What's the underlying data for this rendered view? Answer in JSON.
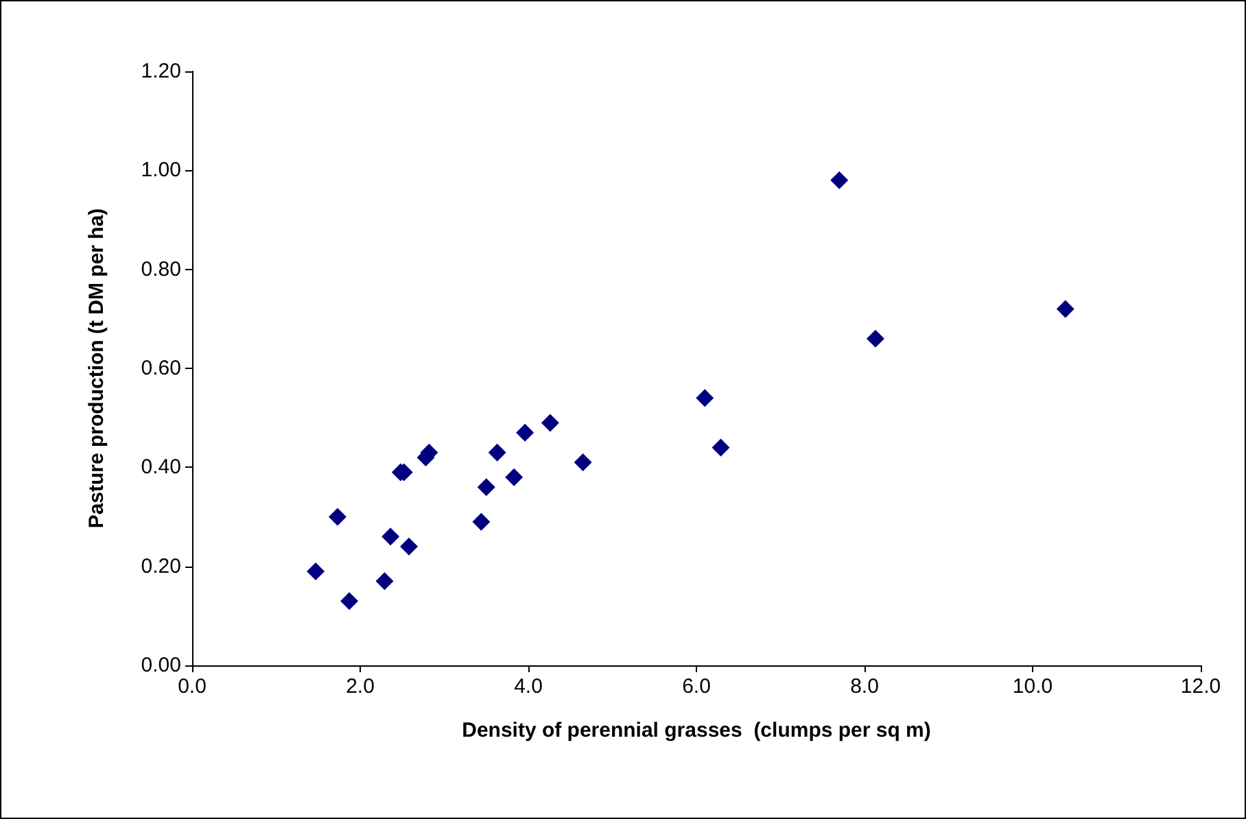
{
  "chart_data": {
    "type": "scatter",
    "xlabel": "Density of perennial grasses  (clumps per sq m)",
    "ylabel": "Pasture production (t DM per ha)",
    "x": [
      1.47,
      1.73,
      1.87,
      2.29,
      2.36,
      2.58,
      2.48,
      2.52,
      2.78,
      2.82,
      3.44,
      3.5,
      3.63,
      3.83,
      3.96,
      4.26,
      4.65,
      6.1,
      6.29,
      7.7,
      8.13,
      10.39
    ],
    "values": [
      0.19,
      0.3,
      0.13,
      0.17,
      0.26,
      0.24,
      0.39,
      0.39,
      0.42,
      0.43,
      0.29,
      0.36,
      0.43,
      0.38,
      0.47,
      0.49,
      0.41,
      0.54,
      0.44,
      0.98,
      0.66,
      0.72
    ],
    "color": "#000080",
    "marker": "diamond",
    "grid": false,
    "xlim": [
      0,
      12
    ],
    "xticks": [
      {
        "value": 0,
        "label": "0.0"
      },
      {
        "value": 2,
        "label": "2.0"
      },
      {
        "value": 4,
        "label": "4.0"
      },
      {
        "value": 6,
        "label": "6.0"
      },
      {
        "value": 8,
        "label": "8.0"
      },
      {
        "value": 10,
        "label": "10.0"
      },
      {
        "value": 12,
        "label": "12.0"
      }
    ],
    "ylim": [
      0,
      1.2
    ],
    "yticks": [
      {
        "value": 0,
        "label": "0.00"
      },
      {
        "value": 0.2,
        "label": "0.20"
      },
      {
        "value": 0.4,
        "label": "0.40"
      },
      {
        "value": 0.6,
        "label": "0.60"
      },
      {
        "value": 0.8,
        "label": "0.80"
      },
      {
        "value": 1,
        "label": "1.00"
      },
      {
        "value": 1.2,
        "label": "1.20"
      }
    ]
  }
}
